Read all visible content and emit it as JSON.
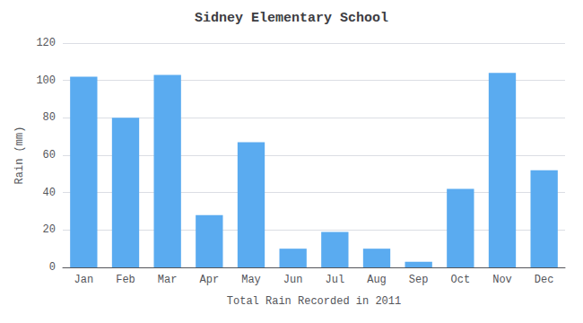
{
  "chart_data": {
    "type": "bar",
    "title": "Sidney Elementary School",
    "xlabel": "Total Rain Recorded in 2011",
    "ylabel": "Rain (mm)",
    "categories": [
      "Jan",
      "Feb",
      "Mar",
      "Apr",
      "May",
      "Jun",
      "Jul",
      "Aug",
      "Sep",
      "Oct",
      "Nov",
      "Dec"
    ],
    "values": [
      102,
      80,
      103,
      28,
      67,
      10,
      19,
      10,
      3,
      42,
      104,
      52
    ],
    "color": "#5aabf0",
    "ylim": [
      0,
      120
    ],
    "yticks": [
      0,
      20,
      40,
      60,
      80,
      100,
      120
    ],
    "grid": true
  }
}
